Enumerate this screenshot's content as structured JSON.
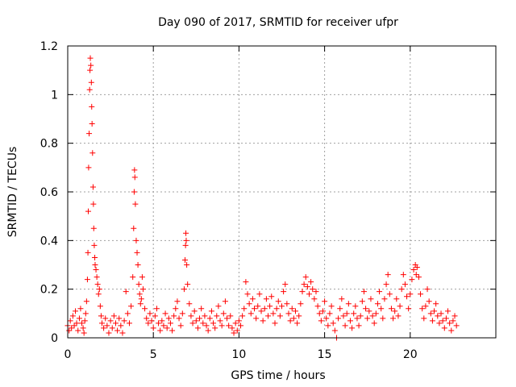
{
  "chart_data": {
    "type": "scatter",
    "title": "Day 090 of 2017, SRMTID for receiver ufpr",
    "xlabel": "GPS time / hours",
    "ylabel": "SRMTID / TECUs",
    "xlim": [
      0,
      25
    ],
    "ylim": [
      0,
      1.2
    ],
    "xticks": [
      0,
      5,
      10,
      15,
      20
    ],
    "xtick_labels": [
      "0",
      "5",
      "10",
      "15",
      "20"
    ],
    "yticks": [
      0,
      0.2,
      0.4,
      0.6,
      0.8,
      1,
      1.2
    ],
    "ytick_labels": [
      "0",
      "0.2",
      "0.4",
      "0.6",
      "0.8",
      "1",
      "1.2"
    ],
    "grid": true,
    "marker": "+",
    "color": "#ff0000",
    "series": [
      {
        "name": "SRMTID",
        "points": [
          [
            0.0,
            0.05
          ],
          [
            0.08,
            0.03
          ],
          [
            0.15,
            0.07
          ],
          [
            0.22,
            0.04
          ],
          [
            0.3,
            0.09
          ],
          [
            0.38,
            0.05
          ],
          [
            0.45,
            0.11
          ],
          [
            0.52,
            0.06
          ],
          [
            0.6,
            0.03
          ],
          [
            0.68,
            0.08
          ],
          [
            0.75,
            0.12
          ],
          [
            0.82,
            0.06
          ],
          [
            0.9,
            0.04
          ],
          [
            0.95,
            0.02
          ],
          [
            1.0,
            0.07
          ],
          [
            1.05,
            0.1
          ],
          [
            1.1,
            0.15
          ],
          [
            1.15,
            0.24
          ],
          [
            1.18,
            0.35
          ],
          [
            1.2,
            0.52
          ],
          [
            1.22,
            0.7
          ],
          [
            1.25,
            0.84
          ],
          [
            1.28,
            1.02
          ],
          [
            1.3,
            1.1
          ],
          [
            1.32,
            1.15
          ],
          [
            1.35,
            1.12
          ],
          [
            1.38,
            1.05
          ],
          [
            1.4,
            0.95
          ],
          [
            1.42,
            0.88
          ],
          [
            1.45,
            0.76
          ],
          [
            1.48,
            0.62
          ],
          [
            1.5,
            0.55
          ],
          [
            1.52,
            0.45
          ],
          [
            1.55,
            0.38
          ],
          [
            1.58,
            0.33
          ],
          [
            1.6,
            0.3
          ],
          [
            1.65,
            0.28
          ],
          [
            1.7,
            0.25
          ],
          [
            1.75,
            0.22
          ],
          [
            1.8,
            0.18
          ],
          [
            1.85,
            0.2
          ],
          [
            1.9,
            0.13
          ],
          [
            1.95,
            0.09
          ],
          [
            2.0,
            0.06
          ],
          [
            2.1,
            0.04
          ],
          [
            2.2,
            0.08
          ],
          [
            2.3,
            0.05
          ],
          [
            2.4,
            0.02
          ],
          [
            2.5,
            0.07
          ],
          [
            2.6,
            0.04
          ],
          [
            2.7,
            0.09
          ],
          [
            2.8,
            0.06
          ],
          [
            2.9,
            0.03
          ],
          [
            3.0,
            0.08
          ],
          [
            3.1,
            0.05
          ],
          [
            3.2,
            0.02
          ],
          [
            3.3,
            0.07
          ],
          [
            3.4,
            0.19
          ],
          [
            3.5,
            0.1
          ],
          [
            3.6,
            0.06
          ],
          [
            3.7,
            0.13
          ],
          [
            3.8,
            0.25
          ],
          [
            3.85,
            0.45
          ],
          [
            3.88,
            0.6
          ],
          [
            3.9,
            0.69
          ],
          [
            3.92,
            0.66
          ],
          [
            3.95,
            0.55
          ],
          [
            4.0,
            0.4
          ],
          [
            4.05,
            0.35
          ],
          [
            4.1,
            0.3
          ],
          [
            4.15,
            0.22
          ],
          [
            4.2,
            0.18
          ],
          [
            4.25,
            0.14
          ],
          [
            4.3,
            0.16
          ],
          [
            4.35,
            0.25
          ],
          [
            4.4,
            0.2
          ],
          [
            4.5,
            0.12
          ],
          [
            4.6,
            0.08
          ],
          [
            4.7,
            0.06
          ],
          [
            4.8,
            0.1
          ],
          [
            4.9,
            0.07
          ],
          [
            5.0,
            0.04
          ],
          [
            5.1,
            0.09
          ],
          [
            5.2,
            0.12
          ],
          [
            5.3,
            0.06
          ],
          [
            5.4,
            0.03
          ],
          [
            5.5,
            0.07
          ],
          [
            5.6,
            0.05
          ],
          [
            5.7,
            0.1
          ],
          [
            5.8,
            0.04
          ],
          [
            5.9,
            0.08
          ],
          [
            6.0,
            0.06
          ],
          [
            6.1,
            0.03
          ],
          [
            6.2,
            0.09
          ],
          [
            6.3,
            0.12
          ],
          [
            6.4,
            0.15
          ],
          [
            6.5,
            0.08
          ],
          [
            6.6,
            0.05
          ],
          [
            6.7,
            0.1
          ],
          [
            6.8,
            0.2
          ],
          [
            6.85,
            0.32
          ],
          [
            6.88,
            0.38
          ],
          [
            6.9,
            0.43
          ],
          [
            6.92,
            0.4
          ],
          [
            6.95,
            0.3
          ],
          [
            7.0,
            0.22
          ],
          [
            7.1,
            0.14
          ],
          [
            7.2,
            0.09
          ],
          [
            7.3,
            0.06
          ],
          [
            7.4,
            0.11
          ],
          [
            7.5,
            0.07
          ],
          [
            7.6,
            0.04
          ],
          [
            7.7,
            0.08
          ],
          [
            7.8,
            0.12
          ],
          [
            7.9,
            0.06
          ],
          [
            8.0,
            0.09
          ],
          [
            8.1,
            0.05
          ],
          [
            8.2,
            0.03
          ],
          [
            8.3,
            0.08
          ],
          [
            8.4,
            0.11
          ],
          [
            8.5,
            0.06
          ],
          [
            8.6,
            0.04
          ],
          [
            8.7,
            0.09
          ],
          [
            8.8,
            0.13
          ],
          [
            8.9,
            0.07
          ],
          [
            9.0,
            0.05
          ],
          [
            9.1,
            0.1
          ],
          [
            9.2,
            0.15
          ],
          [
            9.3,
            0.08
          ],
          [
            9.4,
            0.05
          ],
          [
            9.5,
            0.09
          ],
          [
            9.6,
            0.04
          ],
          [
            9.7,
            0.02
          ],
          [
            9.8,
            0.06
          ],
          [
            9.9,
            0.03
          ],
          [
            10.0,
            0.07
          ],
          [
            10.1,
            0.05
          ],
          [
            10.2,
            0.09
          ],
          [
            10.3,
            0.12
          ],
          [
            10.4,
            0.23
          ],
          [
            10.5,
            0.18
          ],
          [
            10.6,
            0.14
          ],
          [
            10.7,
            0.1
          ],
          [
            10.8,
            0.16
          ],
          [
            10.9,
            0.12
          ],
          [
            11.0,
            0.08
          ],
          [
            11.1,
            0.13
          ],
          [
            11.2,
            0.18
          ],
          [
            11.3,
            0.11
          ],
          [
            11.4,
            0.07
          ],
          [
            11.5,
            0.12
          ],
          [
            11.6,
            0.16
          ],
          [
            11.7,
            0.09
          ],
          [
            11.8,
            0.13
          ],
          [
            11.9,
            0.17
          ],
          [
            12.0,
            0.1
          ],
          [
            12.1,
            0.06
          ],
          [
            12.2,
            0.12
          ],
          [
            12.3,
            0.15
          ],
          [
            12.4,
            0.09
          ],
          [
            12.5,
            0.13
          ],
          [
            12.6,
            0.19
          ],
          [
            12.7,
            0.22
          ],
          [
            12.8,
            0.14
          ],
          [
            12.9,
            0.1
          ],
          [
            13.0,
            0.07
          ],
          [
            13.1,
            0.12
          ],
          [
            13.2,
            0.08
          ],
          [
            13.3,
            0.11
          ],
          [
            13.4,
            0.06
          ],
          [
            13.5,
            0.09
          ],
          [
            13.6,
            0.14
          ],
          [
            13.7,
            0.19
          ],
          [
            13.8,
            0.22
          ],
          [
            13.9,
            0.25
          ],
          [
            14.0,
            0.21
          ],
          [
            14.1,
            0.18
          ],
          [
            14.2,
            0.23
          ],
          [
            14.3,
            0.2
          ],
          [
            14.4,
            0.16
          ],
          [
            14.5,
            0.19
          ],
          [
            14.6,
            0.13
          ],
          [
            14.7,
            0.1
          ],
          [
            14.8,
            0.07
          ],
          [
            14.9,
            0.11
          ],
          [
            15.0,
            0.15
          ],
          [
            15.1,
            0.08
          ],
          [
            15.2,
            0.05
          ],
          [
            15.3,
            0.1
          ],
          [
            15.4,
            0.13
          ],
          [
            15.5,
            0.06
          ],
          [
            15.6,
            0.03
          ],
          [
            15.7,
            0.0
          ],
          [
            15.8,
            0.08
          ],
          [
            15.9,
            0.12
          ],
          [
            16.0,
            0.16
          ],
          [
            16.1,
            0.09
          ],
          [
            16.2,
            0.05
          ],
          [
            16.3,
            0.1
          ],
          [
            16.4,
            0.14
          ],
          [
            16.5,
            0.07
          ],
          [
            16.6,
            0.04
          ],
          [
            16.7,
            0.1
          ],
          [
            16.8,
            0.13
          ],
          [
            16.9,
            0.08
          ],
          [
            17.0,
            0.05
          ],
          [
            17.1,
            0.09
          ],
          [
            17.2,
            0.15
          ],
          [
            17.3,
            0.19
          ],
          [
            17.4,
            0.12
          ],
          [
            17.5,
            0.08
          ],
          [
            17.6,
            0.11
          ],
          [
            17.7,
            0.16
          ],
          [
            17.8,
            0.09
          ],
          [
            17.9,
            0.06
          ],
          [
            18.0,
            0.1
          ],
          [
            18.1,
            0.14
          ],
          [
            18.2,
            0.19
          ],
          [
            18.3,
            0.12
          ],
          [
            18.4,
            0.08
          ],
          [
            18.5,
            0.16
          ],
          [
            18.6,
            0.22
          ],
          [
            18.7,
            0.26
          ],
          [
            18.8,
            0.18
          ],
          [
            18.9,
            0.12
          ],
          [
            19.0,
            0.08
          ],
          [
            19.1,
            0.11
          ],
          [
            19.2,
            0.16
          ],
          [
            19.3,
            0.09
          ],
          [
            19.4,
            0.13
          ],
          [
            19.5,
            0.2
          ],
          [
            19.6,
            0.26
          ],
          [
            19.7,
            0.22
          ],
          [
            19.8,
            0.17
          ],
          [
            19.9,
            0.12
          ],
          [
            20.0,
            0.18
          ],
          [
            20.1,
            0.24
          ],
          [
            20.2,
            0.28
          ],
          [
            20.3,
            0.3
          ],
          [
            20.35,
            0.26
          ],
          [
            20.4,
            0.29
          ],
          [
            20.5,
            0.25
          ],
          [
            20.6,
            0.18
          ],
          [
            20.7,
            0.12
          ],
          [
            20.8,
            0.08
          ],
          [
            20.9,
            0.13
          ],
          [
            21.0,
            0.2
          ],
          [
            21.1,
            0.15
          ],
          [
            21.2,
            0.1
          ],
          [
            21.3,
            0.07
          ],
          [
            21.4,
            0.11
          ],
          [
            21.5,
            0.14
          ],
          [
            21.6,
            0.09
          ],
          [
            21.7,
            0.06
          ],
          [
            21.8,
            0.1
          ],
          [
            21.9,
            0.07
          ],
          [
            22.0,
            0.04
          ],
          [
            22.1,
            0.08
          ],
          [
            22.2,
            0.11
          ],
          [
            22.3,
            0.06
          ],
          [
            22.4,
            0.03
          ],
          [
            22.5,
            0.07
          ],
          [
            22.6,
            0.09
          ],
          [
            22.7,
            0.05
          ]
        ]
      }
    ]
  }
}
